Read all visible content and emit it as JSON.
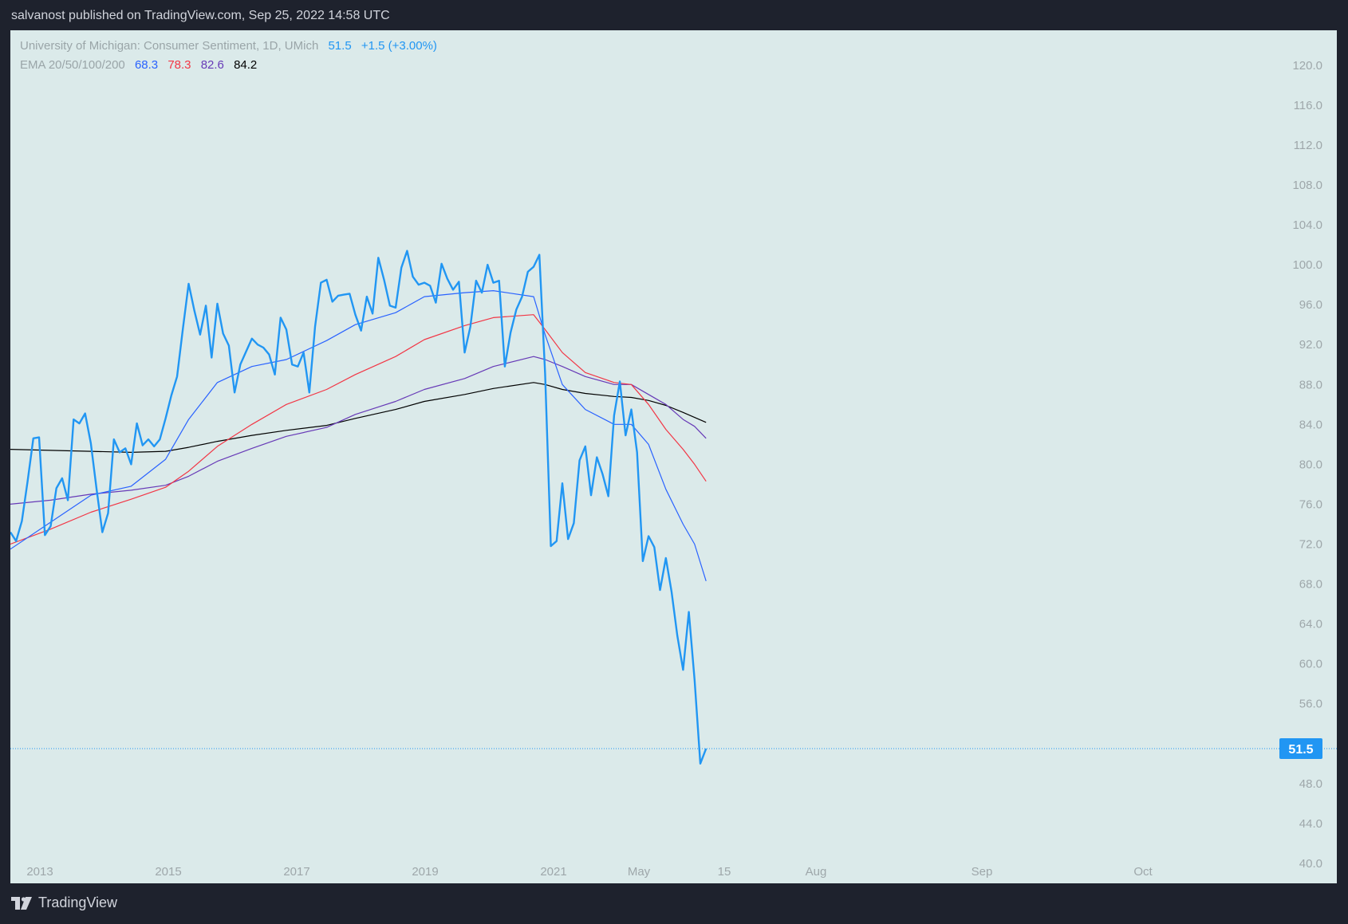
{
  "header": {
    "publisher": "salvanost published on TradingView.com, Sep 25, 2022 14:58 UTC"
  },
  "legend": {
    "symbol": "University of Michigan: Consumer Sentiment, 1D, UMich",
    "last": "51.5",
    "change": "+1.5 (+3.00%)",
    "ema_label": "EMA 20/50/100/200",
    "ema_values": [
      "68.3",
      "78.3",
      "82.6",
      "84.2"
    ]
  },
  "footer": {
    "brand": "TradingView"
  },
  "price_label": "51.5",
  "colors": {
    "price": "#2196f3",
    "ema20": "#2962ff",
    "ema50": "#f23645",
    "ema100": "#673ab7",
    "ema200": "#000000",
    "background": "#dbeaea",
    "frame": "#1e222d"
  },
  "chart_data": {
    "type": "line",
    "title": "University of Michigan: Consumer Sentiment, 1D, UMich",
    "x_ticks": [
      "2013",
      "2015",
      "2017",
      "2019",
      "2021",
      "May",
      "15",
      "Aug",
      "Sep",
      "Oct"
    ],
    "y_ticks": [
      120.0,
      116.0,
      112.0,
      108.0,
      104.0,
      100.0,
      96.0,
      92.0,
      88.0,
      84.0,
      80.0,
      76.0,
      72.0,
      68.0,
      64.0,
      60.0,
      56.0,
      52.0,
      48.0,
      44.0,
      40.0
    ],
    "ylim": [
      38.0,
      123.5
    ],
    "last_value": 51.5,
    "series": [
      {
        "name": "University of Michigan: Consumer Sentiment",
        "x": [
          "2012-06",
          "2012-07",
          "2012-08",
          "2012-09",
          "2012-10",
          "2012-11",
          "2012-12",
          "2013-01",
          "2013-02",
          "2013-03",
          "2013-04",
          "2013-05",
          "2013-06",
          "2013-07",
          "2013-08",
          "2013-09",
          "2013-10",
          "2013-11",
          "2013-12",
          "2014-01",
          "2014-02",
          "2014-03",
          "2014-04",
          "2014-05",
          "2014-06",
          "2014-07",
          "2014-08",
          "2014-09",
          "2014-10",
          "2014-11",
          "2014-12",
          "2015-01",
          "2015-02",
          "2015-03",
          "2015-04",
          "2015-05",
          "2015-06",
          "2015-07",
          "2015-08",
          "2015-09",
          "2015-10",
          "2015-11",
          "2015-12",
          "2016-01",
          "2016-02",
          "2016-03",
          "2016-04",
          "2016-05",
          "2016-06",
          "2016-07",
          "2016-08",
          "2016-09",
          "2016-10",
          "2016-11",
          "2016-12",
          "2017-01",
          "2017-02",
          "2017-03",
          "2017-04",
          "2017-05",
          "2017-06",
          "2017-07",
          "2017-08",
          "2017-09",
          "2017-10",
          "2017-11",
          "2017-12",
          "2018-01",
          "2018-02",
          "2018-03",
          "2018-04",
          "2018-05",
          "2018-06",
          "2018-07",
          "2018-08",
          "2018-09",
          "2018-10",
          "2018-11",
          "2018-12",
          "2019-01",
          "2019-02",
          "2019-03",
          "2019-04",
          "2019-05",
          "2019-06",
          "2019-07",
          "2019-08",
          "2019-09",
          "2019-10",
          "2019-11",
          "2019-12",
          "2020-01",
          "2020-02",
          "2020-03",
          "2020-04",
          "2020-05",
          "2020-06",
          "2020-07",
          "2020-08",
          "2020-09",
          "2020-10",
          "2020-11",
          "2020-12",
          "2021-01",
          "2021-02",
          "2021-03",
          "2021-04",
          "2021-05",
          "2021-06",
          "2021-07",
          "2021-08",
          "2021-09",
          "2021-10",
          "2021-11",
          "2021-12",
          "2022-01",
          "2022-02",
          "2022-03",
          "2022-04",
          "2022-05",
          "2022-06",
          "2022-07"
        ],
        "values": [
          73.2,
          72.3,
          74.3,
          78.3,
          82.6,
          82.7,
          72.9,
          73.8,
          77.6,
          78.6,
          76.4,
          84.5,
          84.1,
          85.1,
          82.1,
          77.5,
          73.2,
          75.1,
          82.5,
          81.2,
          81.6,
          80.0,
          84.1,
          81.9,
          82.5,
          81.8,
          82.5,
          84.6,
          86.9,
          88.8,
          93.6,
          98.1,
          95.4,
          93.0,
          95.9,
          90.7,
          96.1,
          93.1,
          91.9,
          87.2,
          90.0,
          91.3,
          92.6,
          92.0,
          91.7,
          91.0,
          89.0,
          94.7,
          93.5,
          90.0,
          89.8,
          91.2,
          87.2,
          93.8,
          98.2,
          98.5,
          96.3,
          96.9,
          97.0,
          97.1,
          95.0,
          93.4,
          96.8,
          95.1,
          100.7,
          98.5,
          95.9,
          95.7,
          99.7,
          101.4,
          98.8,
          98.0,
          98.2,
          97.9,
          96.2,
          100.1,
          98.6,
          97.5,
          98.3,
          91.2,
          93.8,
          98.4,
          97.2,
          100.0,
          98.2,
          98.4,
          89.8,
          93.2,
          95.5,
          96.8,
          99.3,
          99.8,
          101.0,
          89.1,
          71.8,
          72.3,
          78.1,
          72.5,
          74.1,
          80.4,
          81.8,
          76.9,
          80.7,
          79.0,
          76.8,
          84.9,
          88.3,
          82.9,
          85.5,
          81.2,
          70.3,
          72.8,
          71.7,
          67.4,
          70.6,
          67.2,
          62.8,
          59.4,
          65.2,
          58.4,
          50.0,
          51.5
        ]
      },
      {
        "name": "EMA 20",
        "x": [
          "2012-06",
          "2013-01",
          "2013-08",
          "2014-03",
          "2014-09",
          "2015-01",
          "2015-06",
          "2015-12",
          "2016-06",
          "2017-01",
          "2017-06",
          "2018-01",
          "2018-06",
          "2019-01",
          "2019-06",
          "2020-01",
          "2020-03",
          "2020-06",
          "2020-10",
          "2021-03",
          "2021-06",
          "2021-09",
          "2021-12",
          "2022-03",
          "2022-05",
          "2022-07"
        ],
        "values": [
          71.5,
          74.2,
          76.9,
          77.8,
          80.5,
          84.5,
          88.2,
          89.8,
          90.5,
          92.4,
          94.0,
          95.2,
          96.8,
          97.2,
          97.4,
          96.8,
          93.0,
          88.0,
          85.5,
          84.0,
          84.0,
          82.0,
          77.5,
          74.0,
          72.0,
          68.3
        ]
      },
      {
        "name": "EMA 50",
        "x": [
          "2012-06",
          "2013-01",
          "2013-08",
          "2014-03",
          "2014-09",
          "2015-01",
          "2015-06",
          "2015-12",
          "2016-06",
          "2017-01",
          "2017-06",
          "2018-01",
          "2018-06",
          "2019-01",
          "2019-06",
          "2020-01",
          "2020-03",
          "2020-06",
          "2020-10",
          "2021-03",
          "2021-06",
          "2021-09",
          "2021-12",
          "2022-03",
          "2022-05",
          "2022-07"
        ],
        "values": [
          72.0,
          73.5,
          75.2,
          76.5,
          77.7,
          79.3,
          81.8,
          84.0,
          86.0,
          87.5,
          89.0,
          90.8,
          92.5,
          93.9,
          94.7,
          95.0,
          93.5,
          91.2,
          89.2,
          88.2,
          88.0,
          86.0,
          83.5,
          81.5,
          80.0,
          78.3
        ]
      },
      {
        "name": "EMA 100",
        "x": [
          "2012-06",
          "2013-01",
          "2013-08",
          "2014-03",
          "2014-09",
          "2015-01",
          "2015-06",
          "2015-12",
          "2016-06",
          "2017-01",
          "2017-06",
          "2018-01",
          "2018-06",
          "2019-01",
          "2019-06",
          "2020-01",
          "2020-03",
          "2020-06",
          "2020-10",
          "2021-03",
          "2021-06",
          "2021-09",
          "2021-12",
          "2022-03",
          "2022-05",
          "2022-07"
        ],
        "values": [
          76.0,
          76.4,
          77.0,
          77.4,
          77.9,
          78.8,
          80.3,
          81.6,
          82.8,
          83.7,
          85.0,
          86.3,
          87.5,
          88.6,
          89.8,
          90.8,
          90.5,
          89.8,
          88.8,
          88.0,
          88.0,
          87.0,
          86.0,
          84.5,
          83.8,
          82.6
        ]
      },
      {
        "name": "EMA 200",
        "x": [
          "2012-06",
          "2013-01",
          "2013-08",
          "2014-03",
          "2014-09",
          "2015-01",
          "2015-06",
          "2015-12",
          "2016-06",
          "2017-01",
          "2017-06",
          "2018-01",
          "2018-06",
          "2019-01",
          "2019-06",
          "2020-01",
          "2020-03",
          "2020-06",
          "2020-10",
          "2021-03",
          "2021-06",
          "2021-09",
          "2021-12",
          "2022-03",
          "2022-05",
          "2022-07"
        ],
        "values": [
          81.5,
          81.4,
          81.3,
          81.2,
          81.3,
          81.7,
          82.3,
          82.9,
          83.4,
          83.9,
          84.6,
          85.5,
          86.3,
          87.0,
          87.6,
          88.2,
          88.0,
          87.5,
          87.1,
          86.8,
          86.7,
          86.4,
          85.9,
          85.2,
          84.7,
          84.2
        ]
      }
    ]
  }
}
